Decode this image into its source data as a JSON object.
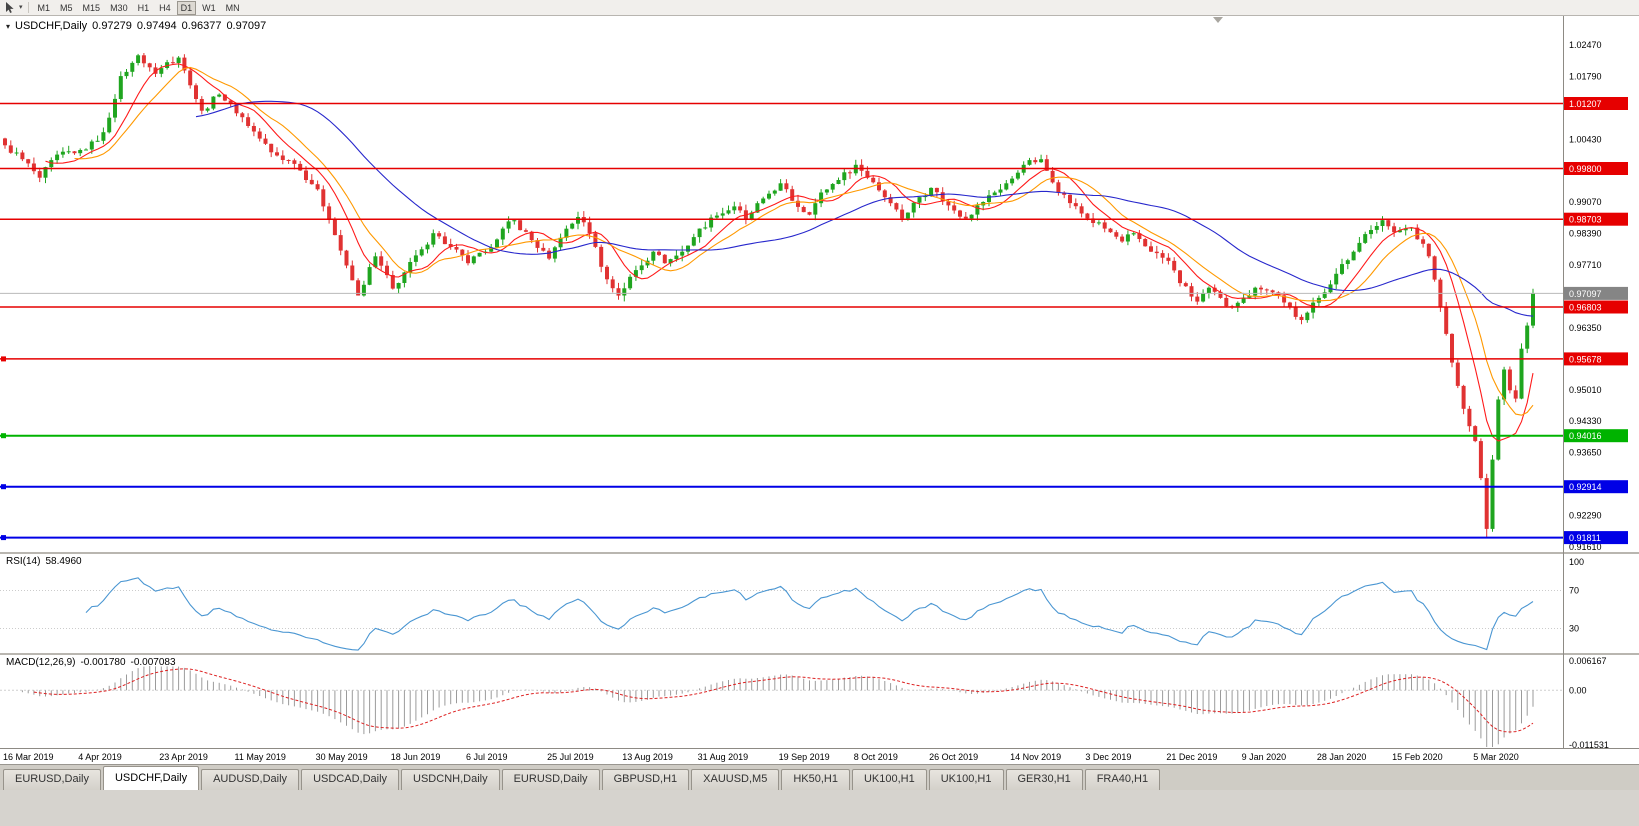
{
  "toolbar": {
    "timeframes": [
      "M1",
      "M5",
      "M15",
      "M30",
      "H1",
      "H4",
      "D1",
      "W1",
      "MN"
    ],
    "active": "D1"
  },
  "icons": {
    "toolbar_caret": "▾",
    "title_marker": "▾"
  },
  "chart": {
    "title": {
      "symbol": "USDCHF,Daily",
      "open": "0.97279",
      "high": "0.97494",
      "low": "0.96377",
      "close": "0.97097"
    }
  },
  "rsi": {
    "label": "RSI(14)",
    "value": "58.4960"
  },
  "macd": {
    "label": "MACD(12,26,9)",
    "macd_value": "-0.001780",
    "signal_value": "-0.007083"
  },
  "tabs": [
    {
      "label": "EURUSD,Daily",
      "active": false
    },
    {
      "label": "USDCHF,Daily",
      "active": true
    },
    {
      "label": "AUDUSD,Daily",
      "active": false
    },
    {
      "label": "USDCAD,Daily",
      "active": false
    },
    {
      "label": "USDCNH,Daily",
      "active": false
    },
    {
      "label": "EURUSD,Daily",
      "active": false
    },
    {
      "label": "GBPUSD,H1",
      "active": false
    },
    {
      "label": "XAUUSD,M5",
      "active": false
    },
    {
      "label": "HK50,H1",
      "active": false
    },
    {
      "label": "UK100,H1",
      "active": false
    },
    {
      "label": "UK100,H1",
      "active": false
    },
    {
      "label": "GER30,H1",
      "active": false
    },
    {
      "label": "FRA40,H1",
      "active": false
    }
  ],
  "chart_data": {
    "type": "candlestick",
    "symbol": "USDCHF",
    "timeframe": "Daily",
    "ohlc_current": {
      "open": 0.97279,
      "high": 0.97494,
      "low": 0.96377,
      "close": 0.97097
    },
    "bars": 265,
    "price_axis_range": [
      0.915,
      1.031
    ],
    "y_ticks": [
      "1.02470",
      "1.01790",
      "1.00430",
      "0.99070",
      "0.98390",
      "0.97710",
      "0.96350",
      "0.95010",
      "0.94330",
      "0.93650",
      "0.92290",
      "0.91610"
    ],
    "levels": [
      {
        "price": 1.01207,
        "label": "1.01207",
        "color": "#e60000",
        "width": 1.5,
        "handle": false
      },
      {
        "price": 0.998,
        "label": "0.99800",
        "color": "#e60000",
        "width": 1.5,
        "handle": false
      },
      {
        "price": 0.98703,
        "label": "0.98703",
        "color": "#e60000",
        "width": 1.5,
        "handle": false
      },
      {
        "price": 0.96803,
        "label": "0.96803",
        "color": "#e60000",
        "width": 1.5,
        "handle": false
      },
      {
        "price": 0.95678,
        "label": "0.95678",
        "color": "#e60000",
        "width": 1.5,
        "handle": true
      },
      {
        "price": 0.94016,
        "label": "0.94016",
        "color": "#00b300",
        "width": 2,
        "handle": true
      },
      {
        "price": 0.92914,
        "label": "0.92914",
        "color": "#0000e6",
        "width": 2,
        "handle": true
      },
      {
        "price": 0.91811,
        "label": "0.91811",
        "color": "#0000e6",
        "width": 2,
        "handle": true
      }
    ],
    "current_price": {
      "price": 0.97097,
      "label": "0.97097",
      "color": "#858585"
    },
    "crash_bar": 256,
    "crash_low": 0.91811,
    "anchors": [
      [
        0,
        1.003
      ],
      [
        3,
        1.0
      ],
      [
        6,
        0.996
      ],
      [
        9,
        1.001
      ],
      [
        13,
        1.002
      ],
      [
        16,
        1.004
      ],
      [
        18,
        1.009
      ],
      [
        20,
        1.018
      ],
      [
        23,
        1.0225
      ],
      [
        26,
        1.0185
      ],
      [
        28,
        1.021
      ],
      [
        30,
        1.022
      ],
      [
        32,
        1.016
      ],
      [
        34,
        1.0105
      ],
      [
        37,
        1.014
      ],
      [
        39,
        1.012
      ],
      [
        43,
        1.006
      ],
      [
        46,
        1.0015
      ],
      [
        50,
        0.999
      ],
      [
        54,
        0.9935
      ],
      [
        56,
        0.987
      ],
      [
        59,
        0.977
      ],
      [
        61,
        0.9705
      ],
      [
        64,
        0.979
      ],
      [
        67,
        0.972
      ],
      [
        69,
        0.9755
      ],
      [
        72,
        0.9805
      ],
      [
        74,
        0.984
      ],
      [
        77,
        0.981
      ],
      [
        80,
        0.9775
      ],
      [
        83,
        0.98
      ],
      [
        86,
        0.985
      ],
      [
        88,
        0.9868
      ],
      [
        91,
        0.9825
      ],
      [
        94,
        0.9785
      ],
      [
        96,
        0.983
      ],
      [
        99,
        0.9875
      ],
      [
        101,
        0.984
      ],
      [
        104,
        0.974
      ],
      [
        106,
        0.9705
      ],
      [
        109,
        0.976
      ],
      [
        112,
        0.98
      ],
      [
        114,
        0.9775
      ],
      [
        117,
        0.98
      ],
      [
        120,
        0.985
      ],
      [
        123,
        0.9878
      ],
      [
        126,
        0.9898
      ],
      [
        128,
        0.987
      ],
      [
        131,
        0.9915
      ],
      [
        134,
        0.9948
      ],
      [
        136,
        0.991
      ],
      [
        139,
        0.988
      ],
      [
        141,
        0.9928
      ],
      [
        144,
        0.9955
      ],
      [
        147,
        0.9988
      ],
      [
        150,
        0.995
      ],
      [
        153,
        0.9905
      ],
      [
        155,
        0.9872
      ],
      [
        158,
        0.9918
      ],
      [
        160,
        0.9938
      ],
      [
        163,
        0.99
      ],
      [
        166,
        0.9872
      ],
      [
        168,
        0.99
      ],
      [
        171,
        0.9928
      ],
      [
        174,
        0.9958
      ],
      [
        176,
        0.9988
      ],
      [
        179,
        1.0
      ],
      [
        181,
        0.995
      ],
      [
        184,
        0.9905
      ],
      [
        187,
        0.9872
      ],
      [
        190,
        0.985
      ],
      [
        193,
        0.9822
      ],
      [
        195,
        0.984
      ],
      [
        198,
        0.98
      ],
      [
        201,
        0.978
      ],
      [
        203,
        0.9732
      ],
      [
        206,
        0.9692
      ],
      [
        208,
        0.9722
      ],
      [
        211,
        0.9682
      ],
      [
        214,
        0.97
      ],
      [
        216,
        0.9722
      ],
      [
        219,
        0.9712
      ],
      [
        221,
        0.969
      ],
      [
        224,
        0.9652
      ],
      [
        227,
        0.97
      ],
      [
        230,
        0.9752
      ],
      [
        233,
        0.98
      ],
      [
        235,
        0.9838
      ],
      [
        238,
        0.9868
      ],
      [
        240,
        0.9842
      ],
      [
        243,
        0.9852
      ],
      [
        246,
        0.979
      ],
      [
        248,
        0.968
      ],
      [
        250,
        0.956
      ],
      [
        252,
        0.946
      ],
      [
        254,
        0.939
      ],
      [
        255,
        0.931
      ],
      [
        256,
        0.92
      ],
      [
        257,
        0.935
      ],
      [
        258,
        0.948
      ],
      [
        259,
        0.9545
      ],
      [
        260,
        0.95
      ],
      [
        261,
        0.9482
      ],
      [
        262,
        0.959
      ],
      [
        263,
        0.964
      ],
      [
        264,
        0.97097
      ]
    ],
    "ma": [
      {
        "period": 8,
        "color": "#ff1a1a"
      },
      {
        "period": 13,
        "color": "#ff9900"
      },
      {
        "period": 34,
        "color": "#2727cc"
      }
    ],
    "colors": {
      "up": "#1fa51f",
      "down": "#e03232",
      "rsi": "#4a96d2",
      "macd_hist": "#9b9b9b",
      "macd_signal": "#dd2222"
    },
    "rsi_axis": [
      "100",
      "70",
      "30"
    ],
    "rsi_levels": [
      70,
      30
    ],
    "macd_axis": [
      "0.006167",
      "0.00",
      "-0.011531"
    ],
    "x_labels": [
      {
        "label": "16 Mar 2019",
        "bar": 0
      },
      {
        "label": "4 Apr 2019",
        "bar": 13
      },
      {
        "label": "23 Apr 2019",
        "bar": 27
      },
      {
        "label": "11 May 2019",
        "bar": 40
      },
      {
        "label": "30 May 2019",
        "bar": 54
      },
      {
        "label": "18 Jun 2019",
        "bar": 67
      },
      {
        "label": "6 Jul 2019",
        "bar": 80
      },
      {
        "label": "25 Jul 2019",
        "bar": 94
      },
      {
        "label": "13 Aug 2019",
        "bar": 107
      },
      {
        "label": "31 Aug 2019",
        "bar": 120
      },
      {
        "label": "19 Sep 2019",
        "bar": 134
      },
      {
        "label": "8 Oct 2019",
        "bar": 147
      },
      {
        "label": "26 Oct 2019",
        "bar": 160
      },
      {
        "label": "14 Nov 2019",
        "bar": 174
      },
      {
        "label": "3 Dec 2019",
        "bar": 187
      },
      {
        "label": "21 Dec 2019",
        "bar": 201
      },
      {
        "label": "9 Jan 2020",
        "bar": 214
      },
      {
        "label": "28 Jan 2020",
        "bar": 227
      },
      {
        "label": "15 Feb 2020",
        "bar": 240
      },
      {
        "label": "5 Mar 2020",
        "bar": 254
      }
    ]
  }
}
